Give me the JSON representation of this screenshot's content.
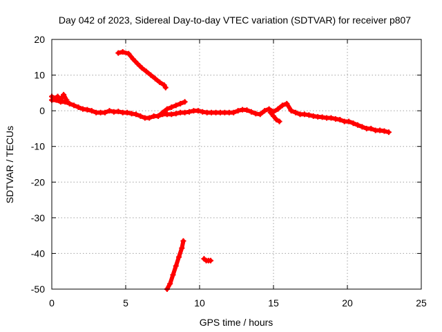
{
  "chart_data": {
    "type": "scatter",
    "title": "Day 042 of 2023, Sidereal Day-to-day VTEC variation (SDTVAR) for receiver p807",
    "xlabel": "GPS time / hours",
    "ylabel": "SDTVAR / TECUs",
    "xlim": [
      0,
      25
    ],
    "ylim": [
      -50,
      20
    ],
    "xticks": [
      0,
      5,
      10,
      15,
      20,
      25
    ],
    "yticks": [
      -50,
      -40,
      -30,
      -20,
      -10,
      0,
      10,
      20
    ],
    "grid": true,
    "color": "#ff0000",
    "series": [
      {
        "name": "main-band",
        "x": [
          0,
          0.3,
          0.6,
          0.9,
          1.2,
          1.5,
          1.8,
          2.1,
          2.4,
          2.7,
          3.0,
          3.3,
          3.6,
          3.9,
          4.2,
          4.5,
          4.8,
          5.1,
          5.4,
          5.7,
          6.0,
          6.3,
          6.6,
          6.9,
          7.2,
          7.5,
          7.8,
          8.1,
          8.4,
          8.7,
          9.0,
          9.3,
          9.6,
          9.9,
          10.2,
          10.5,
          10.8,
          11.1,
          11.4,
          11.7,
          12.0,
          12.3,
          12.6,
          12.9,
          13.2,
          13.5,
          13.8,
          14.1,
          14.4,
          14.7,
          15.0,
          15.3,
          15.6,
          15.9,
          16.2,
          16.5,
          16.8,
          17.1,
          17.4,
          17.7,
          18.0,
          18.3,
          18.6,
          18.9,
          19.2,
          19.5,
          19.8,
          20.1,
          20.4,
          20.7,
          21.0,
          21.3,
          21.6,
          21.9,
          22.2,
          22.5,
          22.8
        ],
        "y": [
          3,
          3,
          2.5,
          2.5,
          2,
          1.5,
          1,
          0.5,
          0.3,
          0,
          -0.5,
          -0.5,
          -0.5,
          0,
          -0.3,
          -0.2,
          -0.5,
          -0.5,
          -0.8,
          -1,
          -1.5,
          -2,
          -2,
          -1.5,
          -1.5,
          -1,
          -1,
          -1,
          -0.8,
          -0.5,
          -0.5,
          -0.3,
          0,
          0,
          -0.3,
          -0.5,
          -0.5,
          -0.5,
          -0.5,
          -0.5,
          -0.5,
          -0.5,
          0,
          0.3,
          0.2,
          -0.3,
          -0.8,
          -1,
          0,
          0.5,
          -0.3,
          0.5,
          1.5,
          2,
          0,
          -0.5,
          -1,
          -1,
          -1.2,
          -1.5,
          -1.7,
          -1.8,
          -2,
          -2,
          -2.3,
          -2.5,
          -3,
          -3,
          -3.5,
          -4,
          -4.5,
          -5,
          -5,
          -5.5,
          -5.5,
          -5.7,
          -6
        ]
      },
      {
        "name": "spike-0.5h",
        "x": [
          0,
          0.2,
          0.4,
          0.6,
          0.8,
          1.0
        ],
        "y": [
          4,
          3.5,
          4,
          3,
          4.5,
          3
        ]
      },
      {
        "name": "rising-7.5-9h",
        "x": [
          7.2,
          7.5,
          7.8,
          8.1,
          8.4,
          8.7,
          9.0
        ],
        "y": [
          -1.5,
          -0.5,
          0.5,
          1,
          1.5,
          2,
          2.5
        ]
      },
      {
        "name": "branch-15.5h",
        "x": [
          14.8,
          15.0,
          15.2,
          15.4
        ],
        "y": [
          -0.5,
          -1.5,
          -2.5,
          -3
        ]
      },
      {
        "name": "falling-arc-5-8h",
        "x": [
          4.5,
          4.8,
          5.2,
          5.5,
          5.8,
          6.1,
          6.4,
          6.7,
          7.0,
          7.3,
          7.6,
          7.7
        ],
        "y": [
          16.2,
          16.5,
          16,
          14.5,
          13.2,
          12,
          11,
          10,
          9,
          8,
          7.2,
          6.5
        ]
      },
      {
        "name": "steep-low-arc",
        "x": [
          7.8,
          8.0,
          8.2,
          8.4,
          8.6,
          8.8,
          8.9
        ],
        "y": [
          -50,
          -48.5,
          -46,
          -43.5,
          -41,
          -38.5,
          -36.5
        ]
      },
      {
        "name": "low-cluster-10.5h",
        "x": [
          10.3,
          10.45,
          10.6,
          10.75
        ],
        "y": [
          -41.5,
          -42,
          -42,
          -42
        ]
      }
    ]
  }
}
